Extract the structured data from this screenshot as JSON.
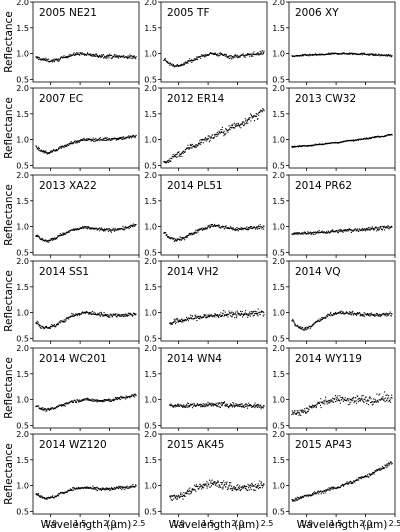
{
  "figure": {
    "xlabel": "Wavelength (μm)",
    "ylabel": "Reflectance"
  },
  "chart_data": [
    {
      "type": "scatter",
      "title": "2005 NE21",
      "xlabel": "",
      "ylabel": "Reflectance",
      "xlim": [
        0.7,
        2.5
      ],
      "ylim": [
        0.0,
        2.0
      ],
      "shape": "flat",
      "noise": 0.03,
      "x": [
        0.75,
        0.9,
        1.0,
        1.1,
        1.2,
        1.35,
        1.5,
        1.6,
        1.8,
        2.0,
        2.2,
        2.45
      ],
      "y": [
        0.92,
        0.88,
        0.86,
        0.87,
        0.92,
        0.97,
        1.0,
        0.98,
        0.96,
        0.95,
        0.94,
        0.93
      ]
    },
    {
      "type": "scatter",
      "title": "2005 TF",
      "xlabel": "",
      "ylabel": "",
      "xlim": [
        0.7,
        2.5
      ],
      "ylim": [
        0.0,
        2.0
      ],
      "shape": "dip",
      "noise": 0.03,
      "x": [
        0.75,
        0.85,
        0.95,
        1.05,
        1.2,
        1.4,
        1.55,
        1.7,
        1.9,
        2.1,
        2.3,
        2.45
      ],
      "y": [
        0.9,
        0.8,
        0.76,
        0.78,
        0.86,
        0.95,
        1.0,
        0.98,
        0.94,
        0.96,
        0.99,
        1.02
      ]
    },
    {
      "type": "scatter",
      "title": "2006 XY",
      "xlabel": "",
      "ylabel": "",
      "xlim": [
        0.7,
        2.5
      ],
      "ylim": [
        0.0,
        2.0
      ],
      "shape": "flat",
      "noise": 0.015,
      "x": [
        0.75,
        1.0,
        1.25,
        1.5,
        1.75,
        2.0,
        2.25,
        2.45
      ],
      "y": [
        0.95,
        0.97,
        0.98,
        1.0,
        1.0,
        0.99,
        0.97,
        0.96
      ]
    },
    {
      "type": "scatter",
      "title": "2007 EC",
      "xlabel": "",
      "ylabel": "Reflectance",
      "xlim": [
        0.7,
        2.5
      ],
      "ylim": [
        0.0,
        2.0
      ],
      "shape": "dip",
      "noise": 0.025,
      "x": [
        0.75,
        0.85,
        0.95,
        1.05,
        1.2,
        1.4,
        1.6,
        1.8,
        2.0,
        2.2,
        2.45
      ],
      "y": [
        0.85,
        0.78,
        0.74,
        0.78,
        0.86,
        0.95,
        1.0,
        1.0,
        1.01,
        1.03,
        1.06
      ]
    },
    {
      "type": "scatter",
      "title": "2012 ER14",
      "xlabel": "",
      "ylabel": "",
      "xlim": [
        0.7,
        2.5
      ],
      "ylim": [
        0.0,
        2.0
      ],
      "shape": "slope",
      "noise": 0.06,
      "x": [
        0.75,
        1.0,
        1.25,
        1.5,
        1.75,
        2.0,
        2.25,
        2.45
      ],
      "y": [
        0.55,
        0.72,
        0.88,
        1.02,
        1.15,
        1.28,
        1.42,
        1.55
      ]
    },
    {
      "type": "scatter",
      "title": "2013 CW32",
      "xlabel": "",
      "ylabel": "",
      "xlim": [
        0.7,
        2.5
      ],
      "ylim": [
        0.0,
        2.0
      ],
      "shape": "gentle",
      "noise": 0.01,
      "x": [
        0.75,
        1.0,
        1.25,
        1.5,
        1.75,
        2.0,
        2.25,
        2.45
      ],
      "y": [
        0.86,
        0.88,
        0.91,
        0.94,
        0.98,
        1.02,
        1.06,
        1.1
      ]
    },
    {
      "type": "scatter",
      "title": "2013 XA22",
      "xlabel": "",
      "ylabel": "Reflectance",
      "xlim": [
        0.7,
        2.5
      ],
      "ylim": [
        0.0,
        2.0
      ],
      "shape": "dip",
      "noise": 0.025,
      "x": [
        0.75,
        0.85,
        0.95,
        1.05,
        1.2,
        1.4,
        1.6,
        1.8,
        2.0,
        2.2,
        2.45
      ],
      "y": [
        0.83,
        0.75,
        0.72,
        0.76,
        0.85,
        0.94,
        0.98,
        0.95,
        0.93,
        0.96,
        1.02
      ]
    },
    {
      "type": "scatter",
      "title": "2014 PL51",
      "xlabel": "",
      "ylabel": "",
      "xlim": [
        0.7,
        2.5
      ],
      "ylim": [
        0.0,
        2.0
      ],
      "shape": "dip",
      "noise": 0.03,
      "x": [
        0.75,
        0.85,
        0.95,
        1.05,
        1.2,
        1.4,
        1.6,
        1.8,
        2.0,
        2.2,
        2.45
      ],
      "y": [
        0.88,
        0.78,
        0.74,
        0.76,
        0.85,
        0.96,
        1.02,
        0.98,
        0.95,
        0.97,
        1.0
      ]
    },
    {
      "type": "scatter",
      "title": "2014 PR62",
      "xlabel": "",
      "ylabel": "",
      "xlim": [
        0.7,
        2.5
      ],
      "ylim": [
        0.0,
        2.0
      ],
      "shape": "gentle",
      "noise": 0.03,
      "x": [
        0.75,
        1.0,
        1.25,
        1.5,
        1.75,
        2.0,
        2.25,
        2.45
      ],
      "y": [
        0.86,
        0.87,
        0.89,
        0.91,
        0.93,
        0.95,
        0.97,
        0.99
      ]
    },
    {
      "type": "scatter",
      "title": "2014 SS1",
      "xlabel": "",
      "ylabel": "Reflectance",
      "xlim": [
        0.7,
        2.5
      ],
      "ylim": [
        0.0,
        2.0
      ],
      "shape": "dip",
      "noise": 0.03,
      "x": [
        0.75,
        0.85,
        0.95,
        1.05,
        1.2,
        1.4,
        1.6,
        1.8,
        2.0,
        2.2,
        2.45
      ],
      "y": [
        0.8,
        0.72,
        0.7,
        0.74,
        0.84,
        0.95,
        1.0,
        0.97,
        0.95,
        0.95,
        0.97
      ]
    },
    {
      "type": "scatter",
      "title": "2014 VH2",
      "xlabel": "",
      "ylabel": "",
      "xlim": [
        0.7,
        2.5
      ],
      "ylim": [
        0.0,
        2.0
      ],
      "shape": "gentle",
      "noise": 0.05,
      "x": [
        0.85,
        1.05,
        1.25,
        1.5,
        1.75,
        2.0,
        2.25,
        2.45
      ],
      "y": [
        0.8,
        0.85,
        0.9,
        0.93,
        0.96,
        0.97,
        0.98,
        1.0
      ]
    },
    {
      "type": "scatter",
      "title": "2014 VQ",
      "xlabel": "",
      "ylabel": "",
      "xlim": [
        0.7,
        2.5
      ],
      "ylim": [
        0.0,
        2.0
      ],
      "shape": "dip",
      "noise": 0.03,
      "x": [
        0.75,
        0.85,
        0.95,
        1.05,
        1.2,
        1.4,
        1.6,
        1.8,
        2.0,
        2.2,
        2.45
      ],
      "y": [
        0.85,
        0.72,
        0.68,
        0.72,
        0.84,
        0.96,
        1.0,
        0.98,
        0.96,
        0.96,
        0.98
      ]
    },
    {
      "type": "scatter",
      "title": "2014 WC201",
      "xlabel": "",
      "ylabel": "Reflectance",
      "xlim": [
        0.7,
        2.5
      ],
      "ylim": [
        0.0,
        2.0
      ],
      "shape": "dip",
      "noise": 0.025,
      "x": [
        0.75,
        0.85,
        0.95,
        1.05,
        1.2,
        1.4,
        1.6,
        1.8,
        2.0,
        2.2,
        2.45
      ],
      "y": [
        0.88,
        0.82,
        0.8,
        0.83,
        0.9,
        0.97,
        1.0,
        0.98,
        0.99,
        1.03,
        1.08
      ]
    },
    {
      "type": "scatter",
      "title": "2014 WN4",
      "xlabel": "",
      "ylabel": "",
      "xlim": [
        0.7,
        2.5
      ],
      "ylim": [
        0.0,
        2.0
      ],
      "shape": "flat",
      "noise": 0.04,
      "x": [
        0.85,
        1.05,
        1.25,
        1.5,
        1.75,
        2.0,
        2.25,
        2.45
      ],
      "y": [
        0.88,
        0.88,
        0.89,
        0.9,
        0.9,
        0.89,
        0.88,
        0.87
      ]
    },
    {
      "type": "scatter",
      "title": "2014 WY119",
      "xlabel": "",
      "ylabel": "",
      "xlim": [
        0.7,
        2.5
      ],
      "ylim": [
        0.0,
        2.0
      ],
      "shape": "rise",
      "noise": 0.07,
      "x": [
        0.75,
        0.85,
        0.95,
        1.1,
        1.3,
        1.5,
        1.7,
        1.9,
        2.1,
        2.3,
        2.45
      ],
      "y": [
        0.75,
        0.74,
        0.78,
        0.86,
        0.96,
        1.0,
        1.0,
        1.0,
        1.0,
        1.02,
        1.02
      ]
    },
    {
      "type": "scatter",
      "title": "2014 WZ120",
      "xlabel": "",
      "ylabel": "Reflectance",
      "xlim": [
        0.7,
        2.5
      ],
      "ylim": [
        0.0,
        2.0
      ],
      "shape": "dip",
      "noise": 0.025,
      "x": [
        0.75,
        0.85,
        0.95,
        1.05,
        1.2,
        1.4,
        1.6,
        1.8,
        2.0,
        2.2,
        2.45
      ],
      "y": [
        0.85,
        0.78,
        0.75,
        0.78,
        0.86,
        0.94,
        0.96,
        0.93,
        0.93,
        0.96,
        0.99
      ]
    },
    {
      "type": "scatter",
      "title": "2015 AK45",
      "xlabel": "",
      "ylabel": "",
      "xlim": [
        0.7,
        2.5
      ],
      "ylim": [
        0.0,
        2.0
      ],
      "shape": "dip",
      "noise": 0.07,
      "x": [
        0.85,
        0.95,
        1.05,
        1.2,
        1.4,
        1.6,
        1.8,
        2.0,
        2.2,
        2.45
      ],
      "y": [
        0.8,
        0.76,
        0.8,
        0.9,
        1.0,
        1.05,
        1.0,
        0.95,
        0.96,
        1.0
      ]
    },
    {
      "type": "scatter",
      "title": "2015 AP43",
      "xlabel": "",
      "ylabel": "",
      "xlim": [
        0.7,
        2.5
      ],
      "ylim": [
        0.0,
        2.0
      ],
      "shape": "slope",
      "noise": 0.03,
      "x": [
        0.75,
        1.0,
        1.25,
        1.5,
        1.75,
        2.0,
        2.25,
        2.45
      ],
      "y": [
        0.72,
        0.8,
        0.88,
        0.96,
        1.06,
        1.18,
        1.32,
        1.45
      ]
    }
  ]
}
